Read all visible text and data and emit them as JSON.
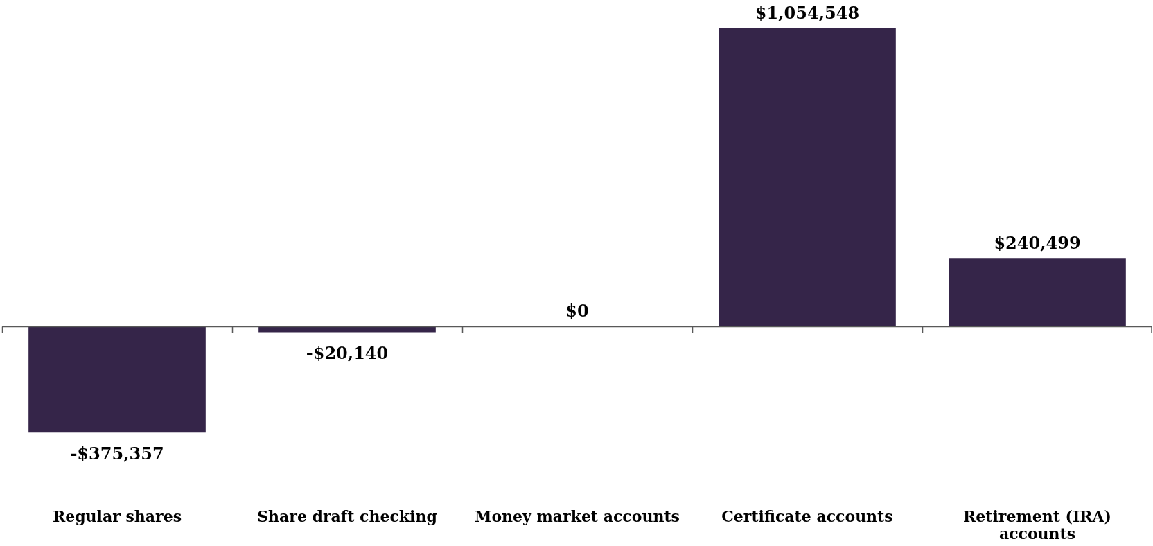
{
  "chart_data": {
    "type": "bar",
    "categories": [
      "Regular shares",
      "Share draft checking",
      "Money market accounts",
      "Certificate accounts",
      "Retirement (IRA) accounts"
    ],
    "values": [
      -375357,
      -20140,
      0,
      1054548,
      240499
    ],
    "color": "#352549",
    "value_labels": [
      "-$375,357",
      "-$20,140",
      "$0",
      "$1,054,548",
      "$240,499"
    ],
    "tick_labels": "x"
  }
}
